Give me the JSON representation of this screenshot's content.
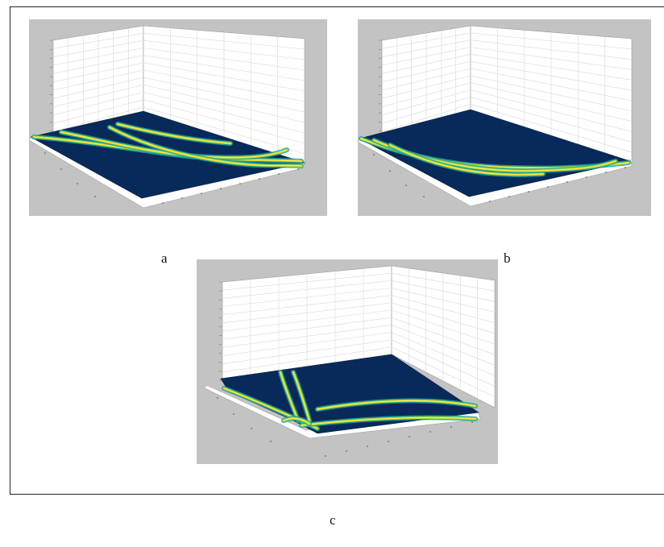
{
  "figure": {
    "panels": [
      {
        "id": "a",
        "label": "a"
      },
      {
        "id": "b",
        "label": "b"
      },
      {
        "id": "c",
        "label": "c"
      }
    ],
    "colors": {
      "panel_background": "#c3c3c3",
      "surface_base": "#082a5a",
      "surface_dark": "#0a1f4a",
      "ridge_mid": "#1aa6a0",
      "ridge_high": "#b7d838",
      "ridge_peak": "#ffe54a",
      "grid": "#d8d8d8"
    }
  }
}
